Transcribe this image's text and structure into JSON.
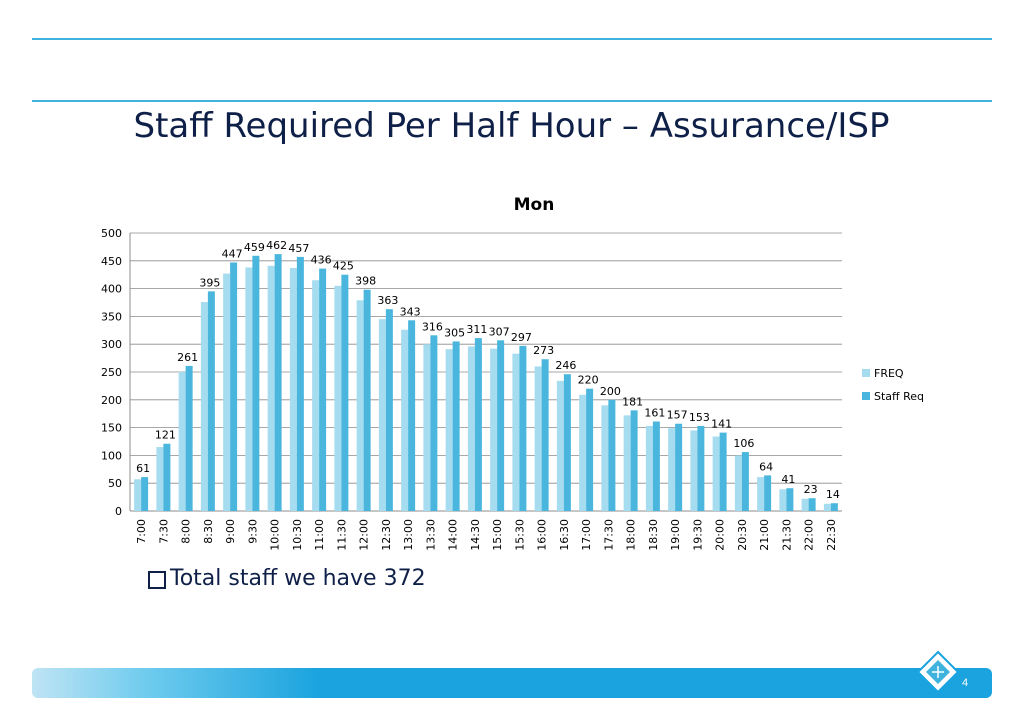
{
  "slide": {
    "title": "Staff Required Per Half Hour – Assurance/ISP",
    "bullet": "Total staff we have 372",
    "page_number": "4"
  },
  "colors": {
    "rule": "#3fb3de",
    "freq": "#a6dcef",
    "staff_req": "#4ab6de",
    "title_text": "#0f2048",
    "footer": "#1aa3de"
  },
  "icons": {
    "logo": "diamond-logo-icon"
  },
  "chart_data": {
    "type": "bar",
    "title": "Mon",
    "xlabel": "",
    "ylabel": "",
    "ylim": [
      0,
      500
    ],
    "yticks": [
      0,
      50,
      100,
      150,
      200,
      250,
      300,
      350,
      400,
      450,
      500
    ],
    "grid": true,
    "legend": "right",
    "categories": [
      "7:00",
      "7:30",
      "8:00",
      "8:30",
      "9:00",
      "9:30",
      "10:00",
      "10:30",
      "11:00",
      "11:30",
      "12:00",
      "12:30",
      "13:00",
      "13:30",
      "14:00",
      "14:30",
      "15:00",
      "15:30",
      "16:00",
      "16:30",
      "17:00",
      "17:30",
      "18:00",
      "18:30",
      "19:00",
      "19:30",
      "20:00",
      "20:30",
      "21:00",
      "21:30",
      "22:00",
      "22:30"
    ],
    "series": [
      {
        "name": "FREQ",
        "values": [
          57,
          115,
          250,
          376,
          427,
          438,
          441,
          437,
          415,
          405,
          379,
          345,
          326,
          300,
          291,
          296,
          292,
          283,
          260,
          234,
          209,
          190,
          172,
          153,
          149,
          145,
          134,
          100,
          61,
          39,
          22,
          13
        ]
      },
      {
        "name": "Staff Req",
        "values": [
          61,
          121,
          261,
          395,
          447,
          459,
          462,
          457,
          436,
          425,
          398,
          363,
          343,
          316,
          305,
          311,
          307,
          297,
          273,
          246,
          220,
          200,
          181,
          161,
          157,
          153,
          141,
          106,
          64,
          41,
          23,
          14
        ],
        "data_labels": true
      }
    ]
  }
}
